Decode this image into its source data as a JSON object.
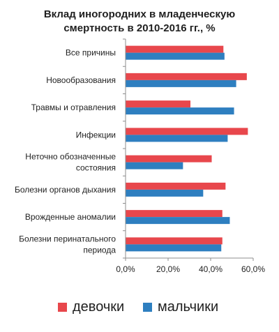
{
  "chart_data": {
    "type": "bar",
    "orientation": "horizontal",
    "title_lines": [
      "Вклад иногородних в младенческую",
      "смертность в 2010-2016 гг., %"
    ],
    "categories": [
      [
        "Все причины"
      ],
      [
        "Новообразования"
      ],
      [
        "Травмы и отравления"
      ],
      [
        "Инфекции"
      ],
      [
        "Неточно обозначенные",
        "состояния"
      ],
      [
        "Болезни органов дыхания"
      ],
      [
        "Врожденные аномалии"
      ],
      [
        "Болезни перинатального",
        "периода"
      ]
    ],
    "series": [
      {
        "name": "девочки",
        "color": "#E8474C",
        "values": [
          46.0,
          57.0,
          30.5,
          57.5,
          40.5,
          47.0,
          45.5,
          45.5
        ]
      },
      {
        "name": "мальчики",
        "color": "#2E7FC0",
        "values": [
          46.5,
          52.0,
          51.0,
          48.0,
          27.0,
          36.5,
          49.0,
          45.0
        ]
      }
    ],
    "xlim": [
      0,
      60
    ],
    "x_ticks": [
      0,
      20,
      40,
      60
    ],
    "x_tick_labels": [
      "0,0%",
      "20,0%",
      "40,0%",
      "60,0%"
    ],
    "grid": false,
    "legend_position": "bottom"
  }
}
